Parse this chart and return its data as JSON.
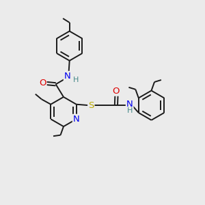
{
  "background_color": "#ebebeb",
  "bond_color": "#1a1a1a",
  "atom_colors": {
    "N": "#0000ee",
    "O": "#dd0000",
    "S": "#bbaa00",
    "H": "#448888",
    "C": "#1a1a1a"
  },
  "bond_lw": 1.4,
  "font_size": 8.5,
  "figsize": [
    3.0,
    3.0
  ],
  "dpi": 100
}
